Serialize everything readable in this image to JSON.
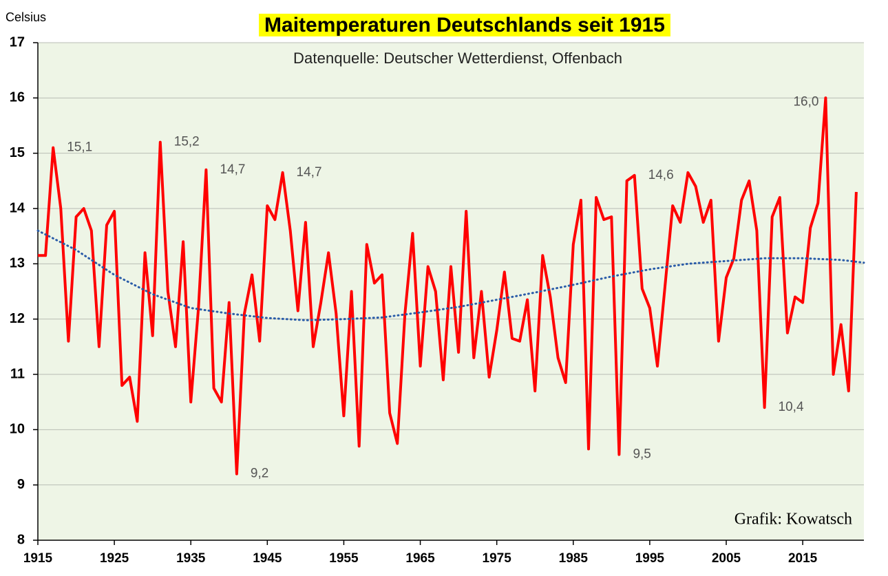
{
  "chart_data": {
    "type": "line",
    "title": "Maitemperaturen Deutschlands seit 1915",
    "subtitle": "Datenquelle: Deutscher Wetterdienst, Offenbach",
    "y_label": "Celsius",
    "annotation": "Grafik: Kowatsch",
    "x": [
      1915,
      1916,
      1917,
      1918,
      1919,
      1920,
      1921,
      1922,
      1923,
      1924,
      1925,
      1926,
      1927,
      1928,
      1929,
      1930,
      1931,
      1932,
      1933,
      1934,
      1935,
      1936,
      1937,
      1938,
      1939,
      1940,
      1941,
      1942,
      1943,
      1944,
      1945,
      1946,
      1947,
      1948,
      1949,
      1950,
      1951,
      1952,
      1953,
      1954,
      1955,
      1956,
      1957,
      1958,
      1959,
      1960,
      1961,
      1962,
      1963,
      1964,
      1965,
      1966,
      1967,
      1968,
      1969,
      1970,
      1971,
      1972,
      1973,
      1974,
      1975,
      1976,
      1977,
      1978,
      1979,
      1980,
      1981,
      1982,
      1983,
      1984,
      1985,
      1986,
      1987,
      1988,
      1989,
      1990,
      1991,
      1992,
      1993,
      1994,
      1995,
      1996,
      1997,
      1998,
      1999,
      2000,
      2001,
      2002,
      2003,
      2004,
      2005,
      2006,
      2007,
      2008,
      2009,
      2010,
      2011,
      2012,
      2013,
      2014,
      2015,
      2016,
      2017,
      2018,
      2019,
      2020,
      2021,
      2022
    ],
    "series": [
      {
        "color": "#ff0000",
        "line_width": 4,
        "values": [
          13.15,
          13.15,
          15.1,
          14.0,
          11.6,
          13.85,
          14.0,
          13.6,
          11.5,
          13.7,
          13.95,
          10.8,
          10.95,
          10.15,
          13.2,
          11.7,
          15.2,
          12.5,
          11.5,
          13.4,
          10.5,
          12.2,
          14.7,
          10.75,
          10.5,
          12.3,
          9.2,
          12.1,
          12.8,
          11.6,
          14.05,
          13.8,
          14.65,
          13.6,
          12.15,
          13.75,
          11.5,
          12.3,
          13.2,
          12.1,
          10.25,
          12.5,
          9.7,
          13.35,
          12.65,
          12.8,
          10.3,
          9.75,
          12.1,
          13.55,
          11.15,
          12.95,
          12.5,
          10.9,
          12.95,
          11.4,
          13.95,
          11.3,
          12.5,
          10.95,
          11.8,
          12.85,
          11.65,
          11.6,
          12.35,
          10.7,
          13.15,
          12.4,
          11.3,
          10.85,
          13.35,
          14.15,
          9.65,
          14.2,
          13.8,
          13.85,
          9.55,
          14.5,
          14.6,
          12.55,
          12.2,
          11.15,
          12.6,
          14.05,
          13.75,
          14.65,
          14.4,
          13.75,
          14.15,
          11.6,
          12.75,
          13.1,
          14.15,
          14.5,
          13.6,
          10.4,
          13.85,
          14.2,
          11.75,
          12.4,
          12.3,
          13.65,
          14.1,
          16.0,
          11.0,
          11.9,
          10.7,
          14.3
        ],
        "value_labels": [
          null,
          null,
          "15,1",
          null,
          null,
          null,
          null,
          null,
          null,
          null,
          null,
          null,
          null,
          null,
          null,
          null,
          "15,2",
          null,
          null,
          null,
          null,
          null,
          "14,7",
          null,
          null,
          null,
          "9,2",
          null,
          null,
          null,
          null,
          null,
          "14,7",
          null,
          null,
          null,
          null,
          null,
          null,
          null,
          null,
          null,
          null,
          null,
          null,
          null,
          null,
          null,
          null,
          null,
          null,
          null,
          null,
          null,
          null,
          null,
          null,
          null,
          null,
          null,
          null,
          null,
          null,
          null,
          null,
          null,
          null,
          null,
          null,
          null,
          null,
          null,
          null,
          null,
          null,
          null,
          "9,5",
          null,
          "14,6",
          null,
          null,
          null,
          null,
          null,
          null,
          null,
          null,
          null,
          null,
          null,
          null,
          null,
          null,
          null,
          null,
          "10,4",
          null,
          null,
          null,
          null,
          null,
          null,
          null,
          "16,0",
          null,
          null,
          null,
          null
        ]
      },
      {
        "color": "#2a5ca8",
        "line_style": "dotted",
        "line_width": 3,
        "x": [
          1915,
          1920,
          1925,
          1930,
          1935,
          1940,
          1945,
          1950,
          1955,
          1960,
          1965,
          1970,
          1975,
          1980,
          1985,
          1990,
          1995,
          2000,
          2005,
          2010,
          2015,
          2020,
          2023
        ],
        "values": [
          13.6,
          13.25,
          12.8,
          12.45,
          12.2,
          12.1,
          12.02,
          11.98,
          12.0,
          12.03,
          12.12,
          12.22,
          12.35,
          12.48,
          12.62,
          12.77,
          12.9,
          13.0,
          13.05,
          13.1,
          13.1,
          13.07,
          13.02
        ]
      }
    ],
    "xlim": [
      1915,
      2023
    ],
    "ylim": [
      8,
      17
    ],
    "xticks": [
      1915,
      1925,
      1935,
      1945,
      1955,
      1965,
      1975,
      1985,
      1995,
      2005,
      2015
    ],
    "yticks": [
      8,
      9,
      10,
      11,
      12,
      13,
      14,
      15,
      16,
      17
    ],
    "grid": true,
    "plot_background": "#eef5e6",
    "title_background": "#ffff00"
  }
}
